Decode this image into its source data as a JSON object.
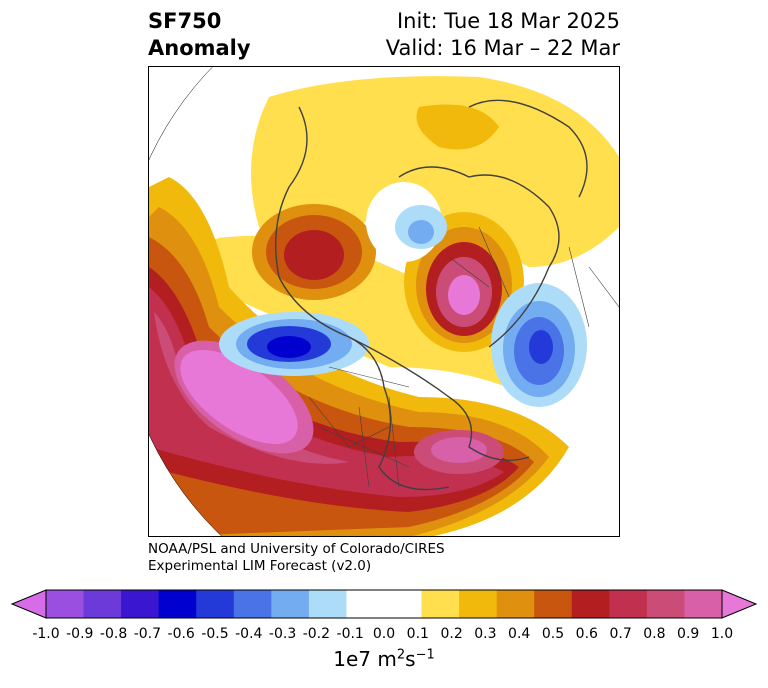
{
  "header": {
    "title_line1": "SF750",
    "title_line2": "Anomaly",
    "init": "Init: Tue 18 Mar 2025",
    "valid": "Valid: 16 Mar – 22 Mar"
  },
  "credit": {
    "line1": "NOAA/PSL and University of Colorado/CIRES",
    "line2": "Experimental LIM Forecast (v2.0)"
  },
  "colorbar": {
    "ticks": [
      "-1.0",
      "-0.9",
      "-0.8",
      "-0.7",
      "-0.6",
      "-0.5",
      "-0.4",
      "-0.3",
      "-0.2",
      "-0.1",
      "0.0",
      "0.1",
      "0.2",
      "0.3",
      "0.4",
      "0.5",
      "0.6",
      "0.7",
      "0.8",
      "0.9",
      "1.0"
    ],
    "colors": [
      "#9b4fe0",
      "#6b3ad8",
      "#3a16d0",
      "#0000cf",
      "#233ad8",
      "#4a73e8",
      "#74acf2",
      "#addcf9",
      "#ffffff",
      "#ffffff",
      "#ffdf4d",
      "#f2b90d",
      "#e0900f",
      "#c8560f",
      "#b31f21",
      "#c23050",
      "#cc4c78",
      "#d860a8"
    ],
    "under_color": "#d66de6",
    "over_color": "#e878d8",
    "units_base": "1e7 m",
    "units_exp1": "2",
    "units_mid": "s",
    "units_exp2": "−1"
  }
}
